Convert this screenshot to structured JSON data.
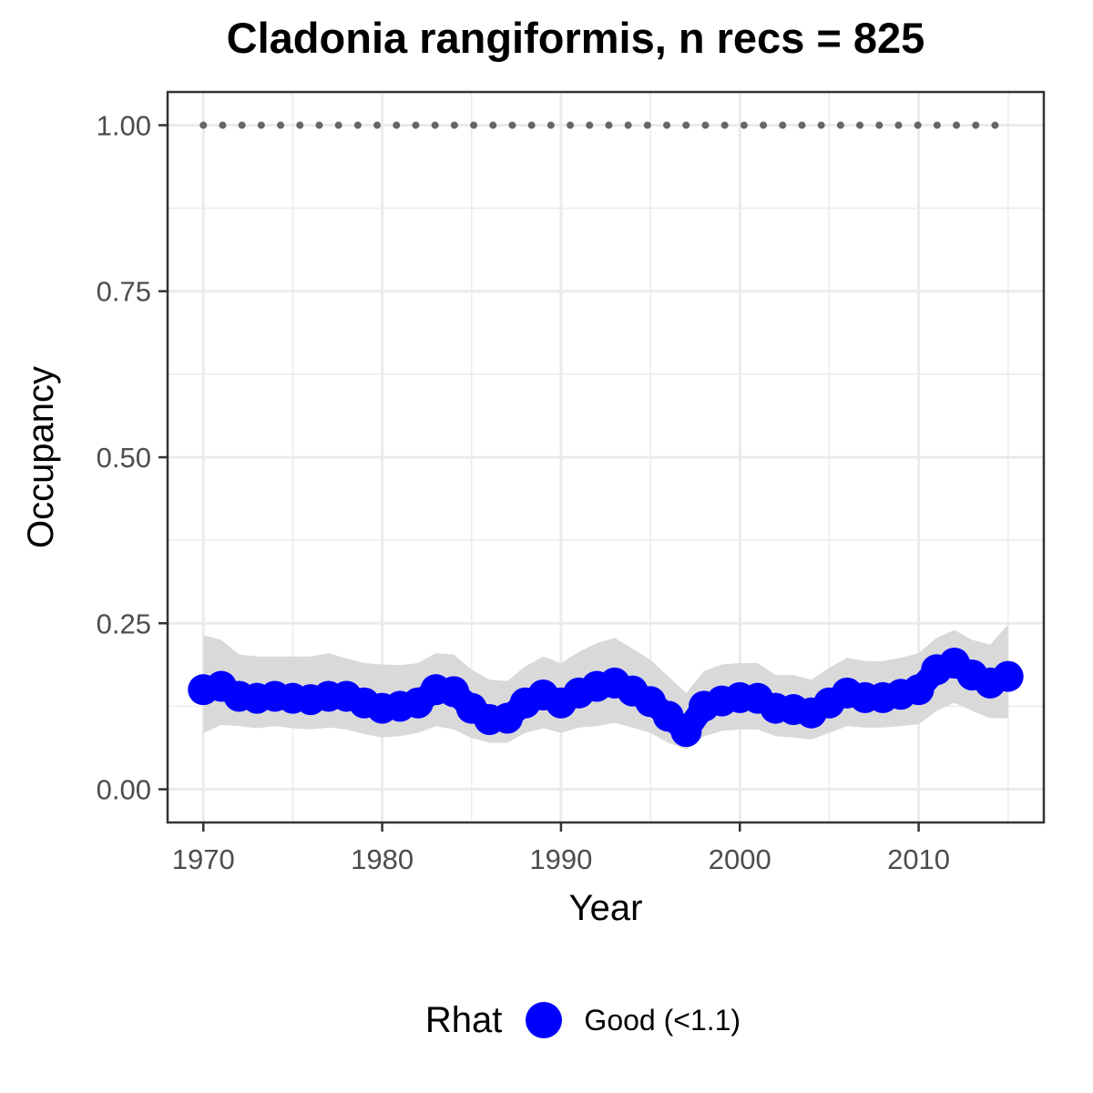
{
  "chart_data": {
    "type": "line",
    "title": "Cladonia rangiformis, n recs = 825",
    "xlabel": "Year",
    "ylabel": "Occupancy",
    "xlim": [
      1968,
      2017
    ],
    "ylim": [
      -0.05,
      1.05
    ],
    "x_ticks": [
      "1970",
      "1980",
      "1990",
      "2000",
      "2010"
    ],
    "y_ticks": [
      "0.00",
      "0.25",
      "0.50",
      "0.75",
      "1.00"
    ],
    "grid": true,
    "legend_position": "bottom",
    "legend": {
      "title": "Rhat",
      "label": "Good (<1.1)"
    },
    "colors": {
      "points": "#0000ff",
      "ribbon": "#d9d9d9",
      "dotted_line": "#666666"
    },
    "x": [
      1970,
      1971,
      1972,
      1973,
      1974,
      1975,
      1976,
      1977,
      1978,
      1979,
      1980,
      1981,
      1982,
      1983,
      1984,
      1985,
      1986,
      1987,
      1988,
      1989,
      1990,
      1991,
      1992,
      1993,
      1994,
      1995,
      1996,
      1997,
      1998,
      1999,
      2000,
      2001,
      2002,
      2003,
      2004,
      2005,
      2006,
      2007,
      2008,
      2009,
      2010,
      2011,
      2012,
      2013,
      2014,
      2015
    ],
    "series": [
      {
        "name": "Good (<1.1)",
        "values": [
          0.15,
          0.155,
          0.14,
          0.137,
          0.14,
          0.137,
          0.135,
          0.14,
          0.14,
          0.13,
          0.122,
          0.125,
          0.13,
          0.15,
          0.147,
          0.122,
          0.105,
          0.107,
          0.13,
          0.142,
          0.13,
          0.145,
          0.155,
          0.16,
          0.148,
          0.132,
          0.11,
          0.087,
          0.125,
          0.133,
          0.138,
          0.137,
          0.122,
          0.12,
          0.115,
          0.13,
          0.145,
          0.138,
          0.138,
          0.143,
          0.15,
          0.18,
          0.19,
          0.172,
          0.16,
          0.17
        ]
      }
    ],
    "ribbon_lower": [
      0.085,
      0.097,
      0.095,
      0.092,
      0.095,
      0.092,
      0.09,
      0.093,
      0.09,
      0.083,
      0.078,
      0.08,
      0.085,
      0.095,
      0.09,
      0.077,
      0.07,
      0.07,
      0.085,
      0.092,
      0.085,
      0.093,
      0.095,
      0.1,
      0.093,
      0.085,
      0.07,
      0.06,
      0.08,
      0.088,
      0.09,
      0.09,
      0.08,
      0.078,
      0.075,
      0.085,
      0.095,
      0.093,
      0.093,
      0.095,
      0.098,
      0.118,
      0.13,
      0.118,
      0.107,
      0.107
    ],
    "ribbon_upper": [
      0.232,
      0.225,
      0.203,
      0.2,
      0.2,
      0.2,
      0.2,
      0.205,
      0.197,
      0.19,
      0.188,
      0.187,
      0.19,
      0.205,
      0.203,
      0.18,
      0.165,
      0.163,
      0.185,
      0.2,
      0.19,
      0.207,
      0.22,
      0.228,
      0.212,
      0.195,
      0.17,
      0.145,
      0.178,
      0.188,
      0.19,
      0.19,
      0.172,
      0.172,
      0.165,
      0.183,
      0.198,
      0.193,
      0.193,
      0.198,
      0.205,
      0.228,
      0.24,
      0.225,
      0.218,
      0.248
    ],
    "dotted_line_value": 1.0
  }
}
